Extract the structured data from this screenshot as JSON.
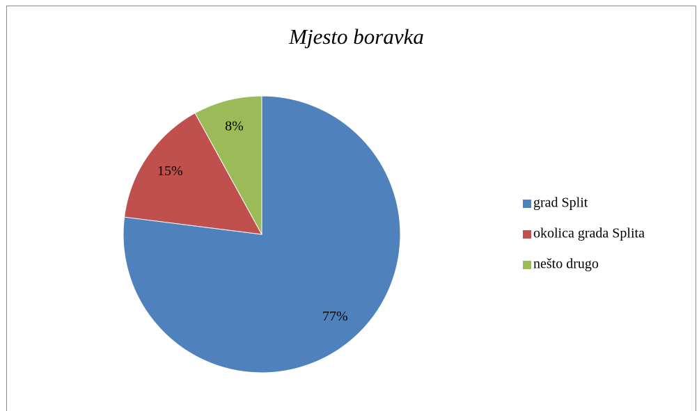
{
  "chart_data": {
    "type": "pie",
    "title": "Mjesto boravka",
    "categories": [
      "grad Split",
      "okolica grada Splita",
      "nešto drugo"
    ],
    "values": [
      77,
      15,
      8
    ],
    "value_labels": [
      "77%",
      "15%",
      "8%"
    ],
    "colors": [
      "#4f81bd",
      "#c0504d",
      "#9bbb59"
    ],
    "legend": "right"
  }
}
